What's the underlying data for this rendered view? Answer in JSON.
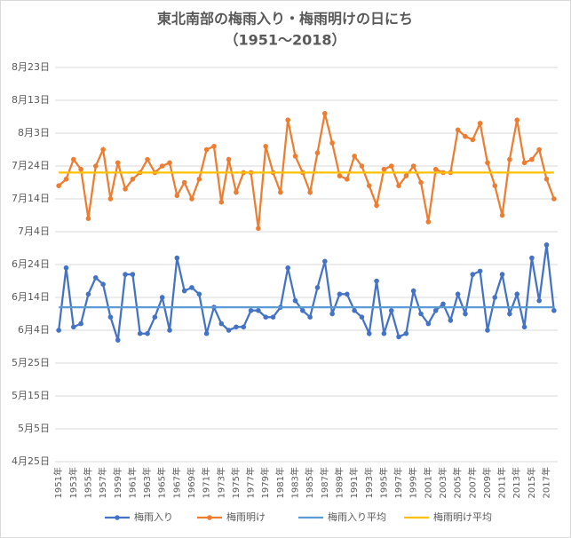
{
  "chart_data": {
    "type": "line",
    "title": "東北南部の梅雨入り・梅雨明けの日にち",
    "subtitle": "（1951～2018）",
    "categories": [
      "1951年",
      null,
      "1953年",
      null,
      "1955年",
      null,
      "1957年",
      null,
      "1959年",
      null,
      "1961年",
      null,
      "1963年",
      null,
      "1965年",
      null,
      "1967年",
      null,
      "1969年",
      null,
      "1971年",
      null,
      "1973年",
      null,
      "1975年",
      null,
      "1977年",
      null,
      "1979年",
      null,
      "1981年",
      null,
      "1983年",
      null,
      "1985年",
      null,
      "1987年",
      null,
      "1989年",
      null,
      "1991年",
      null,
      "1993年",
      null,
      "1995年",
      null,
      "1997年",
      null,
      "1999年",
      null,
      "2001年",
      null,
      "2003年",
      null,
      "2005年",
      null,
      "2007年",
      null,
      "2009年",
      null,
      "2011年",
      null,
      "2013年",
      null,
      "2015年",
      null,
      "2017年",
      null
    ],
    "series": [
      {
        "name": "梅雨入り",
        "color": "#4472c4",
        "values": [
          155,
          174,
          156,
          157,
          166,
          171,
          169,
          159,
          152,
          172,
          172,
          154,
          154,
          159,
          165,
          155,
          177,
          167,
          168,
          166,
          154,
          162,
          157,
          155,
          156,
          156,
          161,
          161,
          159,
          159,
          162,
          174,
          164,
          161,
          159,
          168,
          176,
          160,
          166,
          166,
          161,
          159,
          154,
          170,
          154,
          161,
          153,
          154,
          167,
          160,
          157,
          161,
          163,
          158,
          166,
          160,
          172,
          173,
          155,
          165,
          172,
          160,
          166,
          156,
          177,
          164,
          181,
          161
        ]
      },
      {
        "name": "梅雨明け",
        "color": "#ed7d31",
        "values": [
          199,
          201,
          207,
          204,
          189,
          205,
          210,
          195,
          206,
          198,
          201,
          203,
          207,
          203,
          205,
          206,
          196,
          200,
          195,
          201,
          210,
          211,
          194,
          207,
          197,
          203,
          203,
          186,
          211,
          203,
          197,
          219,
          208,
          203,
          197,
          209,
          221,
          212,
          202,
          201,
          208,
          205,
          199,
          193,
          204,
          205,
          199,
          202,
          205,
          200,
          188,
          204,
          203,
          203,
          216,
          214,
          213,
          218,
          206,
          199,
          190,
          207,
          219,
          206,
          207,
          210,
          201,
          195
        ]
      },
      {
        "name": "梅雨入り平均",
        "color": "#5b9bd5",
        "value": 162
      },
      {
        "name": "梅雨明け平均",
        "color": "#ffc000",
        "value": 203
      }
    ],
    "ylim": [
      115,
      235
    ],
    "yticks": [
      {
        "value": 115,
        "label": "4月25日"
      },
      {
        "value": 125,
        "label": "5月5日"
      },
      {
        "value": 135,
        "label": "5月15日"
      },
      {
        "value": 145,
        "label": "5月25日"
      },
      {
        "value": 155,
        "label": "6月4日"
      },
      {
        "value": 165,
        "label": "6月14日"
      },
      {
        "value": 175,
        "label": "6月24日"
      },
      {
        "value": 185,
        "label": "7月4日"
      },
      {
        "value": 195,
        "label": "7月14日"
      },
      {
        "value": 205,
        "label": "7月24日"
      },
      {
        "value": 215,
        "label": "8月3日"
      },
      {
        "value": 225,
        "label": "8月13日"
      },
      {
        "value": 235,
        "label": "8月23日"
      }
    ],
    "grid": true,
    "legend": "bottom"
  }
}
